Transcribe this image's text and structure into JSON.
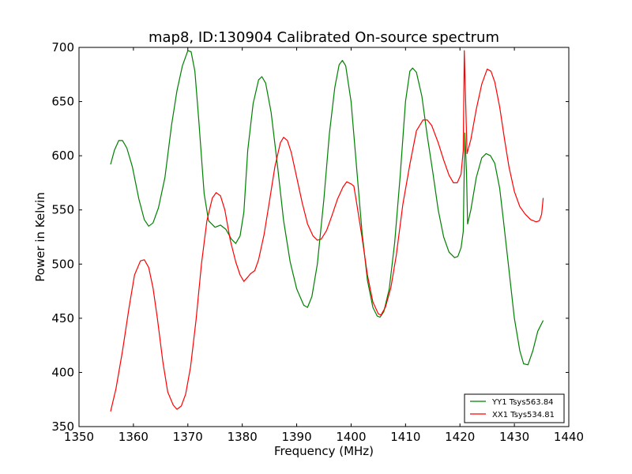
{
  "chart_data": {
    "type": "line",
    "title": "map8, ID:130904 Calibrated On-source spectrum",
    "xlabel": "Frequency (MHz)",
    "ylabel": "Power in Kelvin",
    "xlim": [
      1350,
      1440
    ],
    "ylim": [
      350,
      700
    ],
    "xticks": [
      1350,
      1360,
      1370,
      1380,
      1390,
      1400,
      1410,
      1420,
      1430,
      1440
    ],
    "yticks": [
      350,
      400,
      450,
      500,
      550,
      600,
      650,
      700
    ],
    "grid": false,
    "legend_position": "lower-right",
    "series": [
      {
        "name": "YY1 Tsys563.84",
        "color": "#008000",
        "points": [
          [
            1355.8,
            592
          ],
          [
            1356.5,
            605
          ],
          [
            1357.3,
            614
          ],
          [
            1358.0,
            614
          ],
          [
            1358.8,
            607
          ],
          [
            1359.8,
            590
          ],
          [
            1361.0,
            560
          ],
          [
            1362.0,
            541
          ],
          [
            1362.8,
            535
          ],
          [
            1363.6,
            538
          ],
          [
            1364.6,
            552
          ],
          [
            1365.8,
            580
          ],
          [
            1367.0,
            628
          ],
          [
            1368.0,
            660
          ],
          [
            1369.0,
            683
          ],
          [
            1370.0,
            697
          ],
          [
            1370.6,
            696
          ],
          [
            1371.3,
            678
          ],
          [
            1372.0,
            633
          ],
          [
            1373.0,
            565
          ],
          [
            1373.8,
            540
          ],
          [
            1375.0,
            534
          ],
          [
            1376.0,
            536
          ],
          [
            1377.0,
            532
          ],
          [
            1378.0,
            523
          ],
          [
            1378.8,
            519
          ],
          [
            1379.6,
            526
          ],
          [
            1380.3,
            548
          ],
          [
            1381.0,
            605
          ],
          [
            1382.0,
            648
          ],
          [
            1383.0,
            670
          ],
          [
            1383.6,
            673
          ],
          [
            1384.3,
            667
          ],
          [
            1385.3,
            640
          ],
          [
            1386.5,
            590
          ],
          [
            1387.6,
            540
          ],
          [
            1388.8,
            502
          ],
          [
            1390.0,
            477
          ],
          [
            1391.3,
            462
          ],
          [
            1392.0,
            460
          ],
          [
            1392.8,
            470
          ],
          [
            1393.8,
            500
          ],
          [
            1395.0,
            560
          ],
          [
            1396.0,
            620
          ],
          [
            1397.0,
            663
          ],
          [
            1397.8,
            684
          ],
          [
            1398.4,
            688
          ],
          [
            1399.0,
            683
          ],
          [
            1400.0,
            650
          ],
          [
            1401.0,
            590
          ],
          [
            1402.0,
            530
          ],
          [
            1403.0,
            485
          ],
          [
            1404.0,
            460
          ],
          [
            1404.8,
            452
          ],
          [
            1405.3,
            451
          ],
          [
            1406.0,
            456
          ],
          [
            1407.0,
            477
          ],
          [
            1408.0,
            520
          ],
          [
            1409.0,
            580
          ],
          [
            1410.0,
            650
          ],
          [
            1410.8,
            678
          ],
          [
            1411.3,
            681
          ],
          [
            1412.0,
            677
          ],
          [
            1413.0,
            655
          ],
          [
            1414.0,
            618
          ],
          [
            1415.0,
            585
          ],
          [
            1416.0,
            550
          ],
          [
            1417.0,
            525
          ],
          [
            1418.0,
            511
          ],
          [
            1419.0,
            506
          ],
          [
            1419.6,
            507
          ],
          [
            1420.2,
            515
          ],
          [
            1420.6,
            530
          ],
          [
            1420.9,
            621
          ],
          [
            1421.2,
            585
          ],
          [
            1421.4,
            537
          ],
          [
            1422.0,
            550
          ],
          [
            1423.0,
            580
          ],
          [
            1424.0,
            598
          ],
          [
            1424.8,
            602
          ],
          [
            1425.6,
            600
          ],
          [
            1426.4,
            593
          ],
          [
            1427.3,
            570
          ],
          [
            1428.0,
            540
          ],
          [
            1429.0,
            495
          ],
          [
            1430.0,
            450
          ],
          [
            1431.0,
            420
          ],
          [
            1431.7,
            408
          ],
          [
            1432.5,
            407
          ],
          [
            1433.4,
            420
          ],
          [
            1434.3,
            438
          ],
          [
            1435.3,
            448
          ]
        ]
      },
      {
        "name": "XX1 Tsys534.81",
        "color": "#ff0000",
        "points": [
          [
            1355.8,
            364
          ],
          [
            1356.8,
            385
          ],
          [
            1358.0,
            420
          ],
          [
            1359.2,
            460
          ],
          [
            1360.2,
            490
          ],
          [
            1361.3,
            503
          ],
          [
            1362.0,
            504
          ],
          [
            1362.8,
            497
          ],
          [
            1363.6,
            478
          ],
          [
            1364.4,
            450
          ],
          [
            1365.4,
            410
          ],
          [
            1366.3,
            382
          ],
          [
            1367.3,
            370
          ],
          [
            1368.0,
            366
          ],
          [
            1368.8,
            369
          ],
          [
            1369.6,
            380
          ],
          [
            1370.5,
            405
          ],
          [
            1371.5,
            448
          ],
          [
            1372.5,
            500
          ],
          [
            1373.5,
            540
          ],
          [
            1374.5,
            561
          ],
          [
            1375.2,
            566
          ],
          [
            1376.0,
            563
          ],
          [
            1376.8,
            550
          ],
          [
            1377.8,
            522
          ],
          [
            1378.8,
            502
          ],
          [
            1379.6,
            490
          ],
          [
            1380.3,
            484
          ],
          [
            1381.0,
            488
          ],
          [
            1381.5,
            491
          ],
          [
            1382.3,
            494
          ],
          [
            1383.0,
            504
          ],
          [
            1384.0,
            527
          ],
          [
            1385.0,
            558
          ],
          [
            1386.0,
            590
          ],
          [
            1387.0,
            612
          ],
          [
            1387.6,
            617
          ],
          [
            1388.3,
            614
          ],
          [
            1389.0,
            603
          ],
          [
            1390.0,
            580
          ],
          [
            1391.0,
            557
          ],
          [
            1392.0,
            537
          ],
          [
            1393.0,
            526
          ],
          [
            1393.8,
            522
          ],
          [
            1394.5,
            523
          ],
          [
            1395.5,
            531
          ],
          [
            1396.5,
            545
          ],
          [
            1397.5,
            560
          ],
          [
            1398.5,
            571
          ],
          [
            1399.2,
            576
          ],
          [
            1400.0,
            574
          ],
          [
            1400.5,
            572
          ],
          [
            1401.0,
            557
          ],
          [
            1402.0,
            525
          ],
          [
            1403.0,
            490
          ],
          [
            1404.0,
            465
          ],
          [
            1405.0,
            454
          ],
          [
            1405.5,
            453
          ],
          [
            1406.3,
            460
          ],
          [
            1407.3,
            478
          ],
          [
            1408.3,
            508
          ],
          [
            1409.5,
            555
          ],
          [
            1410.8,
            592
          ],
          [
            1412.0,
            623
          ],
          [
            1413.2,
            633
          ],
          [
            1414.0,
            633
          ],
          [
            1414.8,
            628
          ],
          [
            1416.0,
            612
          ],
          [
            1417.0,
            596
          ],
          [
            1418.0,
            582
          ],
          [
            1418.8,
            575
          ],
          [
            1419.5,
            575
          ],
          [
            1420.2,
            583
          ],
          [
            1420.6,
            605
          ],
          [
            1420.8,
            697
          ],
          [
            1421.1,
            640
          ],
          [
            1421.3,
            602
          ],
          [
            1422.0,
            615
          ],
          [
            1423.0,
            643
          ],
          [
            1424.0,
            666
          ],
          [
            1425.0,
            680
          ],
          [
            1425.7,
            678
          ],
          [
            1426.4,
            668
          ],
          [
            1427.3,
            645
          ],
          [
            1428.2,
            615
          ],
          [
            1429.0,
            590
          ],
          [
            1430.0,
            567
          ],
          [
            1431.0,
            553
          ],
          [
            1432.0,
            546
          ],
          [
            1433.0,
            541
          ],
          [
            1434.0,
            539
          ],
          [
            1434.6,
            540
          ],
          [
            1435.0,
            546
          ],
          [
            1435.3,
            561
          ]
        ]
      }
    ]
  }
}
